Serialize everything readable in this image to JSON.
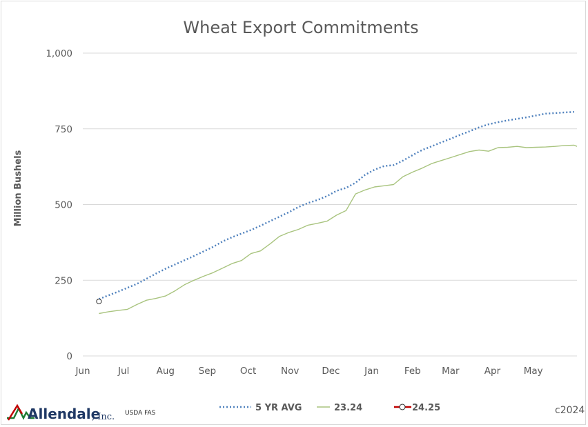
{
  "chart_data": {
    "type": "line",
    "title": "Wheat Export Commitments",
    "xlabel": "",
    "ylabel": "Million Bushels",
    "ylim": [
      0,
      1000
    ],
    "yticks": [
      {
        "value": 0,
        "label": "0"
      },
      {
        "value": 250,
        "label": "250"
      },
      {
        "value": 500,
        "label": "500"
      },
      {
        "value": 750,
        "label": "750"
      },
      {
        "value": 1000,
        "label": "1,000"
      }
    ],
    "xlim": [
      0,
      52
    ],
    "xticks": [
      {
        "value": 0,
        "label": "Jun"
      },
      {
        "value": 4.3,
        "label": "Jul"
      },
      {
        "value": 8.7,
        "label": "Aug"
      },
      {
        "value": 13.1,
        "label": "Sep"
      },
      {
        "value": 17.4,
        "label": "Oct"
      },
      {
        "value": 21.8,
        "label": "Nov"
      },
      {
        "value": 26.1,
        "label": "Dec"
      },
      {
        "value": 30.4,
        "label": "Jan"
      },
      {
        "value": 34.7,
        "label": "Feb"
      },
      {
        "value": 38.7,
        "label": "Mar"
      },
      {
        "value": 43.1,
        "label": "Apr"
      },
      {
        "value": 47.4,
        "label": "May"
      }
    ],
    "grid": "horizontal",
    "legend_position": "bottom",
    "series": [
      {
        "name": "5 YR AVG",
        "color": "#4f81bd",
        "style": "dotted",
        "points": [
          [
            1.7,
            188
          ],
          [
            2.7,
            200
          ],
          [
            3.7,
            212
          ],
          [
            4.7,
            225
          ],
          [
            5.7,
            238
          ],
          [
            6.7,
            255
          ],
          [
            7.7,
            272
          ],
          [
            8.7,
            288
          ],
          [
            9.7,
            302
          ],
          [
            10.7,
            316
          ],
          [
            11.7,
            330
          ],
          [
            12.7,
            345
          ],
          [
            13.7,
            360
          ],
          [
            14.7,
            378
          ],
          [
            15.7,
            392
          ],
          [
            16.7,
            404
          ],
          [
            17.7,
            416
          ],
          [
            18.7,
            430
          ],
          [
            19.7,
            445
          ],
          [
            20.7,
            460
          ],
          [
            21.7,
            475
          ],
          [
            22.7,
            492
          ],
          [
            23.7,
            505
          ],
          [
            24.7,
            515
          ],
          [
            25.7,
            528
          ],
          [
            26.7,
            545
          ],
          [
            27.7,
            555
          ],
          [
            28.7,
            572
          ],
          [
            29.7,
            598
          ],
          [
            30.7,
            615
          ],
          [
            31.7,
            627
          ],
          [
            32.7,
            630
          ],
          [
            33.7,
            645
          ],
          [
            34.7,
            663
          ],
          [
            35.7,
            680
          ],
          [
            36.7,
            692
          ],
          [
            37.7,
            705
          ],
          [
            38.7,
            717
          ],
          [
            39.7,
            730
          ],
          [
            40.7,
            742
          ],
          [
            41.7,
            755
          ],
          [
            42.7,
            765
          ],
          [
            43.7,
            772
          ],
          [
            44.7,
            778
          ],
          [
            45.7,
            783
          ],
          [
            46.7,
            788
          ],
          [
            47.7,
            794
          ],
          [
            48.7,
            800
          ],
          [
            49.7,
            802
          ],
          [
            50.7,
            804
          ],
          [
            51.7,
            806
          ]
        ]
      },
      {
        "name": "23.24",
        "color": "#a9c47f",
        "style": "solid",
        "points": [
          [
            1.7,
            140
          ],
          [
            2.7,
            146
          ],
          [
            3.7,
            150
          ],
          [
            4.7,
            154
          ],
          [
            5.7,
            170
          ],
          [
            6.7,
            184
          ],
          [
            7.7,
            190
          ],
          [
            8.7,
            198
          ],
          [
            9.7,
            215
          ],
          [
            10.7,
            235
          ],
          [
            11.7,
            250
          ],
          [
            12.7,
            263
          ],
          [
            13.7,
            275
          ],
          [
            14.7,
            290
          ],
          [
            15.7,
            305
          ],
          [
            16.7,
            315
          ],
          [
            17.7,
            338
          ],
          [
            18.7,
            347
          ],
          [
            19.7,
            370
          ],
          [
            20.7,
            395
          ],
          [
            21.7,
            408
          ],
          [
            22.7,
            418
          ],
          [
            23.7,
            432
          ],
          [
            24.7,
            438
          ],
          [
            25.7,
            445
          ],
          [
            26.7,
            465
          ],
          [
            27.7,
            480
          ],
          [
            28.7,
            535
          ],
          [
            29.7,
            548
          ],
          [
            30.7,
            558
          ],
          [
            31.7,
            562
          ],
          [
            32.7,
            566
          ],
          [
            33.7,
            592
          ],
          [
            34.7,
            607
          ],
          [
            35.7,
            620
          ],
          [
            36.7,
            635
          ],
          [
            37.7,
            645
          ],
          [
            38.7,
            655
          ],
          [
            39.7,
            665
          ],
          [
            40.7,
            675
          ],
          [
            41.7,
            680
          ],
          [
            42.7,
            676
          ],
          [
            43.7,
            688
          ],
          [
            44.7,
            689
          ],
          [
            45.7,
            692
          ],
          [
            46.7,
            688
          ],
          [
            47.7,
            689
          ],
          [
            48.7,
            690
          ],
          [
            49.7,
            692
          ],
          [
            50.7,
            695
          ],
          [
            51.7,
            696
          ],
          [
            52,
            692
          ]
        ]
      },
      {
        "name": "24.25",
        "color": "#c00000",
        "style": "solid-marker",
        "points": [
          [
            1.7,
            180
          ]
        ]
      }
    ]
  },
  "footer": {
    "logo_name": "Allendale",
    "logo_suffix": ", Inc.",
    "source": "USDA FAS",
    "copyright": "c2024"
  }
}
